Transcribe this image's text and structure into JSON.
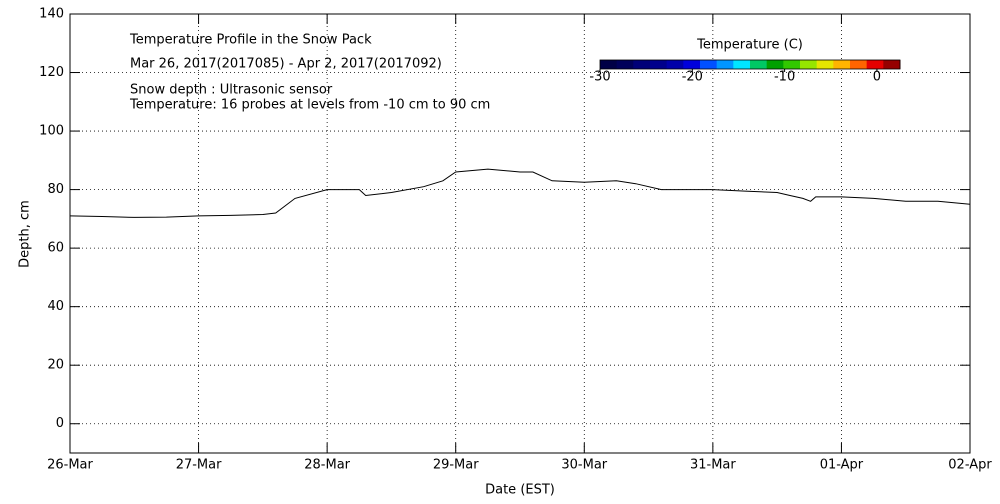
{
  "chart_data": {
    "type": "line",
    "title": "Temperature Profile in the Snow Pack",
    "subtitle": "Mar 26, 2017(2017085) - Apr  2, 2017(2017092)",
    "annotations": [
      "Snow depth : Ultrasonic sensor",
      "Temperature: 16 probes at levels from -10 cm to 90 cm"
    ],
    "xlabel": "Date (EST)",
    "ylabel": "Depth, cm",
    "x": [
      0,
      0.25,
      0.5,
      0.75,
      1.0,
      1.25,
      1.5,
      1.6,
      1.75,
      2.0,
      2.25,
      2.3,
      2.5,
      2.75,
      2.9,
      3.0,
      3.25,
      3.5,
      3.6,
      3.75,
      4.0,
      4.25,
      4.4,
      4.6,
      5.0,
      5.25,
      5.5,
      5.6,
      5.7,
      5.76,
      5.8,
      6.0,
      6.25,
      6.5,
      6.75,
      7.0
    ],
    "series": [
      {
        "name": "Snow depth",
        "color": "#000000",
        "values": [
          71,
          70.8,
          70.5,
          70.6,
          71,
          71.2,
          71.5,
          72,
          77,
          80,
          80,
          78,
          79,
          81,
          83,
          86,
          87,
          86,
          86,
          83,
          82.5,
          83,
          82,
          80,
          80,
          79.5,
          79,
          78,
          77,
          76,
          77.5,
          77.5,
          77,
          76,
          76,
          75
        ]
      }
    ],
    "xlim": [
      0,
      7
    ],
    "xticks": [
      {
        "value": 0,
        "label": "26-Mar"
      },
      {
        "value": 1,
        "label": "27-Mar"
      },
      {
        "value": 2,
        "label": "28-Mar"
      },
      {
        "value": 3,
        "label": "29-Mar"
      },
      {
        "value": 4,
        "label": "30-Mar"
      },
      {
        "value": 5,
        "label": "31-Mar"
      },
      {
        "value": 6,
        "label": "01-Apr"
      },
      {
        "value": 7,
        "label": "02-Apr"
      }
    ],
    "ylim": [
      -10,
      140
    ],
    "yticks": [
      0,
      20,
      40,
      60,
      80,
      100,
      120,
      140
    ],
    "grid": true,
    "colorbar": {
      "title": "Temperature (C)",
      "lim": [
        -30,
        2.5
      ],
      "ticks": [
        -30,
        -20,
        -10,
        0
      ],
      "colors": [
        "#000046",
        "#00005a",
        "#000078",
        "#00008c",
        "#0000aa",
        "#0000dc",
        "#0050ff",
        "#0096ff",
        "#00e6ff",
        "#00c864",
        "#00a000",
        "#32c800",
        "#96e600",
        "#e6e600",
        "#ffb400",
        "#ff6400",
        "#e60000",
        "#960000"
      ]
    }
  }
}
